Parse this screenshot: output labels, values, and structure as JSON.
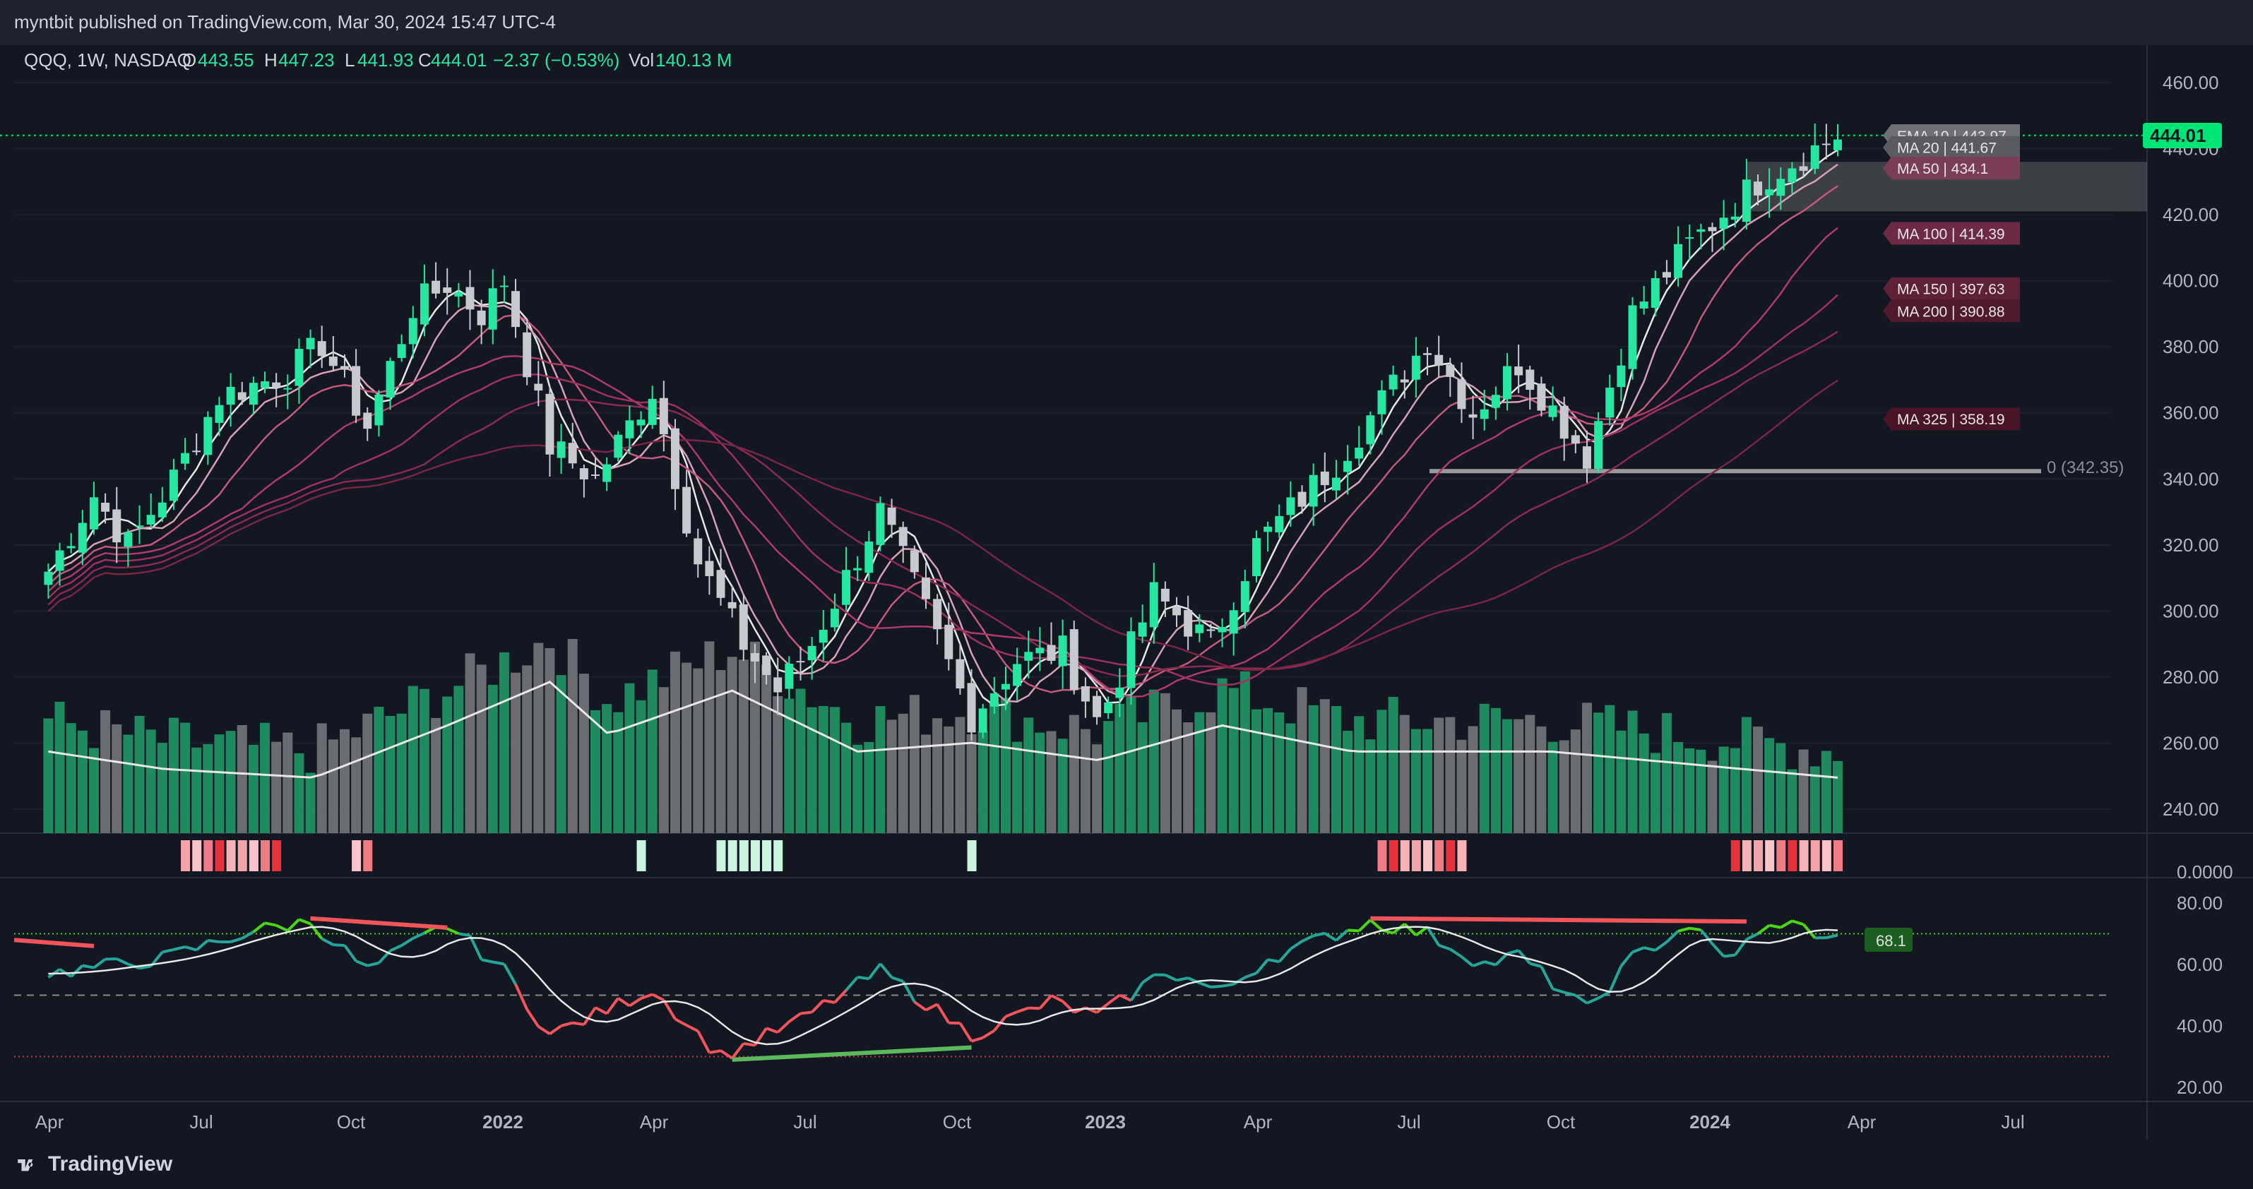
{
  "header": {
    "published": "myntbit published on TradingView.com, Mar 30, 2024 15:47 UTC-4"
  },
  "legend": {
    "symbol": "QQQ, 1W, NASDAQ",
    "open_label": "O",
    "open": "443.55",
    "high_label": "H",
    "high": "447.23",
    "low_label": "L",
    "low": "441.93",
    "close_label": "C",
    "close": "444.01",
    "change": "−2.37 (−0.53%)",
    "vol_label": "Vol",
    "vol": "140.13 M"
  },
  "price_axis": {
    "ticks": [
      "460.00",
      "440.00",
      "420.00",
      "400.00",
      "380.00",
      "360.00",
      "340.00",
      "320.00",
      "300.00",
      "280.00",
      "260.00",
      "240.00"
    ],
    "last_price": "444.01"
  },
  "ma_labels": [
    {
      "text": "EMA 10 | 443.97",
      "value": 443.97,
      "color": "#6f6f78"
    },
    {
      "text": "MA 20 | 441.67",
      "value": 441.67,
      "color": "#5a5a62"
    },
    {
      "text": "MA 50 | 434.1",
      "value": 434.1,
      "color": "#7a3d55"
    },
    {
      "text": "MA 100 | 414.39",
      "value": 414.39,
      "color": "#6e2a45"
    },
    {
      "text": "MA 150 | 397.63",
      "value": 397.63,
      "color": "#5e2138"
    },
    {
      "text": "MA 200 | 390.88",
      "value": 390.88,
      "color": "#4f1a2e"
    },
    {
      "text": "MA 325 | 358.19",
      "value": 358.19,
      "color": "#4a1428"
    }
  ],
  "support_label": "0 (342.35)",
  "signal_axis": {
    "tick": "0.0000"
  },
  "rsi": {
    "ticks": [
      "80.00",
      "60.00",
      "40.00",
      "20.00"
    ],
    "value_label": "68.1"
  },
  "time_axis": {
    "labels": [
      {
        "text": "Apr",
        "bold": false
      },
      {
        "text": "Jul",
        "bold": false
      },
      {
        "text": "Oct",
        "bold": false
      },
      {
        "text": "2022",
        "bold": true
      },
      {
        "text": "Apr",
        "bold": false
      },
      {
        "text": "Jul",
        "bold": false
      },
      {
        "text": "Oct",
        "bold": false
      },
      {
        "text": "2023",
        "bold": true
      },
      {
        "text": "Apr",
        "bold": false
      },
      {
        "text": "Jul",
        "bold": false
      },
      {
        "text": "Oct",
        "bold": false
      },
      {
        "text": "2024",
        "bold": true
      },
      {
        "text": "Apr",
        "bold": false
      },
      {
        "text": "Jul",
        "bold": false
      }
    ]
  },
  "footer": {
    "brand": "TradingView"
  },
  "colors": {
    "background": "#131722",
    "up": "#26e6a0",
    "down": "#c8c8d0",
    "vol_up": "#1e8a5e",
    "vol_down": "#6b6b72",
    "rsi_neutral": "#26a69a",
    "rsi_overbought": "#4cd417",
    "rsi_oversold": "#f2545b",
    "last_price": "#00e676",
    "ma_line": "#b03a6a"
  },
  "chart_data": {
    "type": "candlestick",
    "title": "QQQ, 1W, NASDAQ",
    "ylim": [
      220,
      470
    ],
    "close_path": [
      [
        "2021-03-22",
        312
      ],
      [
        "2021-04-19",
        335
      ],
      [
        "2021-05-10",
        320
      ],
      [
        "2021-06-07",
        340
      ],
      [
        "2021-07-05",
        365
      ],
      [
        "2021-08-16",
        372
      ],
      [
        "2021-09-06",
        381
      ],
      [
        "2021-10-04",
        356
      ],
      [
        "2021-11-01",
        392
      ],
      [
        "2021-11-22",
        399
      ],
      [
        "2021-12-13",
        390
      ],
      [
        "2021-12-27",
        400
      ],
      [
        "2022-01-24",
        350
      ],
      [
        "2022-02-21",
        340
      ],
      [
        "2022-03-28",
        367
      ],
      [
        "2022-04-25",
        315
      ],
      [
        "2022-05-23",
        290
      ],
      [
        "2022-06-13",
        276
      ],
      [
        "2022-07-04",
        290
      ],
      [
        "2022-08-15",
        330
      ],
      [
        "2022-09-12",
        300
      ],
      [
        "2022-10-10",
        268
      ],
      [
        "2022-11-07",
        285
      ],
      [
        "2022-12-05",
        288
      ],
      [
        "2022-12-27",
        266
      ],
      [
        "2023-01-30",
        305
      ],
      [
        "2023-03-06",
        290
      ],
      [
        "2023-04-03",
        320
      ],
      [
        "2023-05-22",
        345
      ],
      [
        "2023-07-17",
        382
      ],
      [
        "2023-08-14",
        360
      ],
      [
        "2023-09-11",
        375
      ],
      [
        "2023-10-23",
        347
      ],
      [
        "2023-11-20",
        390
      ],
      [
        "2023-12-25",
        411
      ],
      [
        "2024-02-05",
        430
      ],
      [
        "2024-03-25",
        444
      ]
    ],
    "volume_path": [
      [
        "2021-03-22",
        0.55
      ],
      [
        "2021-06-01",
        0.45
      ],
      [
        "2021-09-01",
        0.4
      ],
      [
        "2021-11-22",
        0.7
      ],
      [
        "2022-01-24",
        0.95
      ],
      [
        "2022-03-01",
        0.65
      ],
      [
        "2022-05-16",
        0.9
      ],
      [
        "2022-08-01",
        0.55
      ],
      [
        "2022-10-10",
        0.6
      ],
      [
        "2022-12-27",
        0.5
      ],
      [
        "2023-03-13",
        0.7
      ],
      [
        "2023-06-01",
        0.55
      ],
      [
        "2023-10-01",
        0.55
      ],
      [
        "2024-03-25",
        0.4
      ]
    ],
    "rsi_path": [
      [
        "2021-03-22",
        57
      ],
      [
        "2021-06-01",
        62
      ],
      [
        "2021-07-26",
        71
      ],
      [
        "2021-08-30",
        74
      ],
      [
        "2021-10-04",
        58
      ],
      [
        "2021-11-22",
        73
      ],
      [
        "2021-12-27",
        58
      ],
      [
        "2022-01-24",
        37
      ],
      [
        "2022-03-28",
        52
      ],
      [
        "2022-05-09",
        30
      ],
      [
        "2022-06-27",
        42
      ],
      [
        "2022-08-15",
        58
      ],
      [
        "2022-10-10",
        37
      ],
      [
        "2022-11-28",
        48
      ],
      [
        "2022-12-27",
        43
      ],
      [
        "2023-02-06",
        58
      ],
      [
        "2023-03-13",
        51
      ],
      [
        "2023-04-10",
        62
      ],
      [
        "2023-06-12",
        74
      ],
      [
        "2023-07-17",
        70
      ],
      [
        "2023-08-21",
        60
      ],
      [
        "2023-09-11",
        63
      ],
      [
        "2023-10-23",
        45
      ],
      [
        "2023-11-20",
        62
      ],
      [
        "2023-12-25",
        73
      ],
      [
        "2024-01-15",
        62
      ],
      [
        "2024-02-19",
        74
      ],
      [
        "2024-03-25",
        68.1
      ]
    ],
    "rsi_ylim": [
      15,
      85
    ],
    "rsi_levels": [
      70,
      50,
      30
    ],
    "support_level": 342.35,
    "signal_red_weeks": [
      "2021-06-14",
      "2021-09-27",
      "2023-06-19",
      "2024-01-22"
    ],
    "signal_green_weeks": [
      "2022-03-21",
      "2022-05-09",
      "2022-06-06",
      "2022-10-10"
    ]
  }
}
